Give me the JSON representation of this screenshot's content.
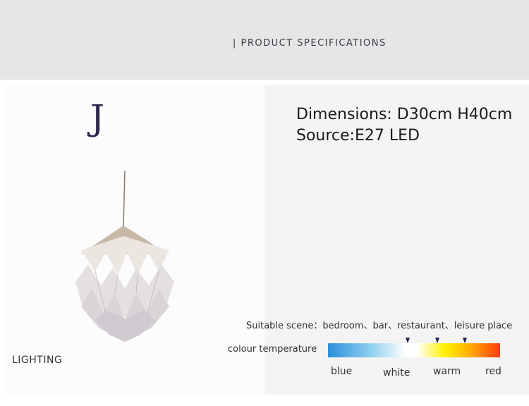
{
  "banner": {
    "title": "| PRODUCT SPECIFICATIONS"
  },
  "product": {
    "letter": "J",
    "category": "LIGHTING"
  },
  "specs": {
    "dimensions": "Dimensions: D30cm H40cm",
    "source": "Source:E27 LED"
  },
  "scene": {
    "text": "Suitable scene：bedroom、bar、restaurant、leisure place"
  },
  "colour_temperature": {
    "label": "colour temperature",
    "scale": [
      "blue",
      "white",
      "warm",
      "red"
    ],
    "gradient_colors": [
      "#2b8fdc",
      "#ffffff",
      "#fff000",
      "#ffb000",
      "#ff3c10"
    ],
    "marker_color": "#1e2350"
  }
}
